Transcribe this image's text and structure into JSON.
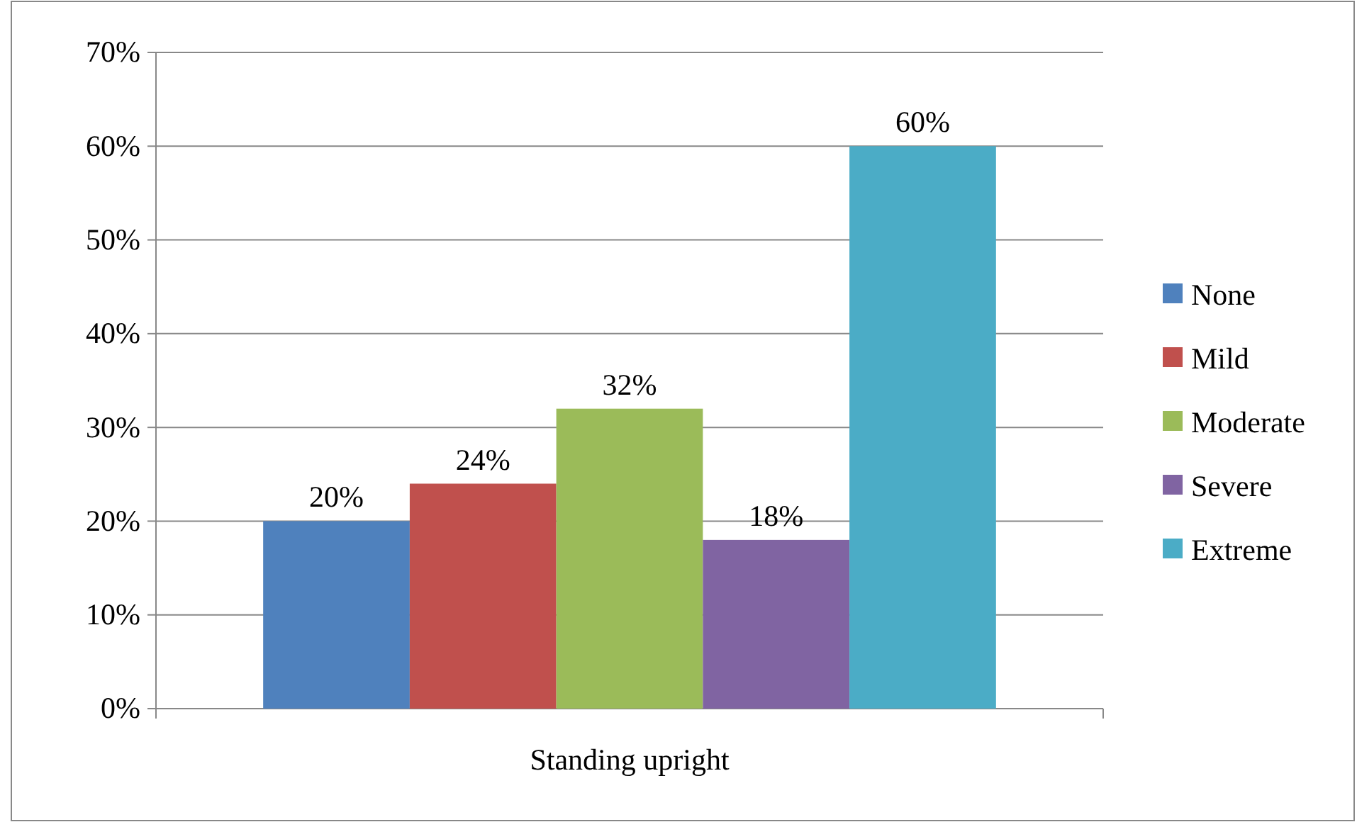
{
  "chart_data": {
    "type": "bar",
    "categories": [
      "Standing upright"
    ],
    "series": [
      {
        "name": "None",
        "color": "#4f81bd",
        "values": [
          20
        ],
        "value_labels": [
          "20%"
        ]
      },
      {
        "name": "Mild",
        "color": "#c0504d",
        "values": [
          24
        ],
        "value_labels": [
          "24%"
        ]
      },
      {
        "name": "Moderate",
        "color": "#9bbb59",
        "values": [
          32
        ],
        "value_labels": [
          "32%"
        ]
      },
      {
        "name": "Severe",
        "color": "#8064a2",
        "values": [
          18
        ],
        "value_labels": [
          "18%"
        ]
      },
      {
        "name": "Extreme",
        "color": "#4bacc6",
        "values": [
          60
        ],
        "value_labels": [
          "60%"
        ]
      }
    ],
    "ylim": [
      0,
      70
    ],
    "yticks": [
      {
        "value": 0,
        "label": "0%"
      },
      {
        "value": 10,
        "label": "10%"
      },
      {
        "value": 20,
        "label": "20%"
      },
      {
        "value": 30,
        "label": "30%"
      },
      {
        "value": 40,
        "label": "40%"
      },
      {
        "value": 50,
        "label": "50%"
      },
      {
        "value": 60,
        "label": "60%"
      },
      {
        "value": 70,
        "label": "70%"
      }
    ],
    "grid": "y",
    "legend": "right"
  }
}
